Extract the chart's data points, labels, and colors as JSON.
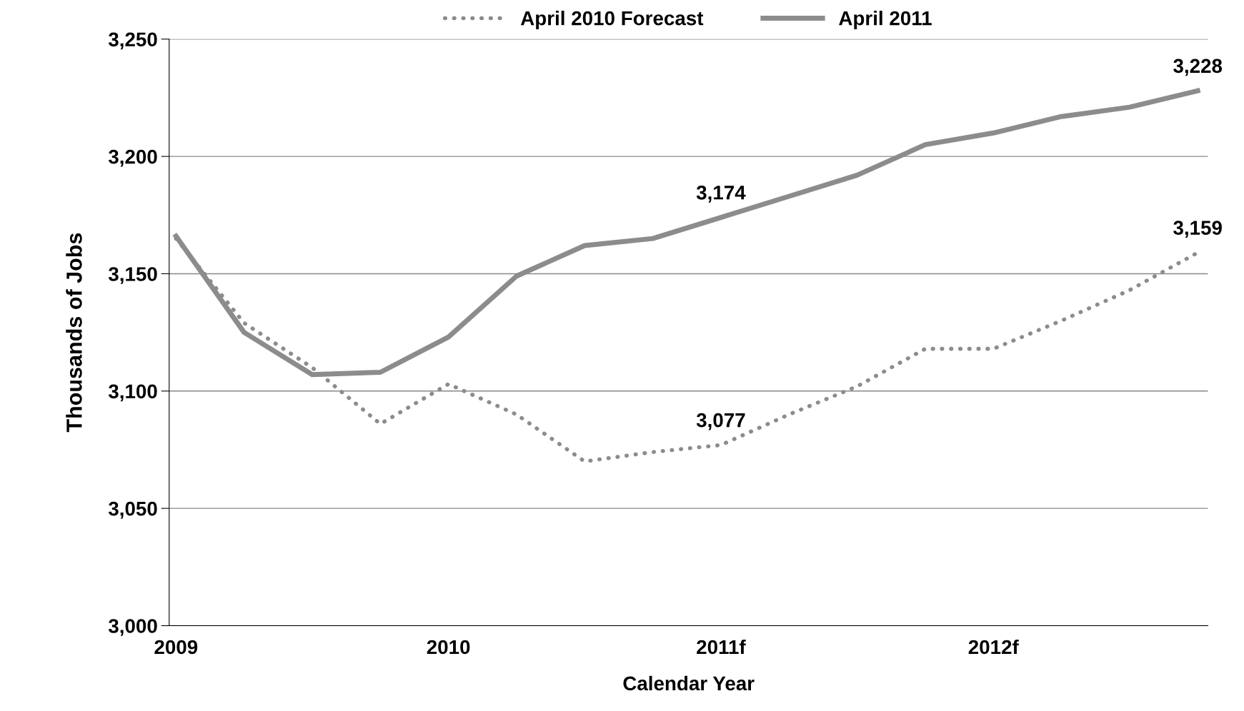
{
  "chart_data": {
    "type": "line",
    "xlabel": "Calendar Year",
    "ylabel": "Thousands of Jobs",
    "categories": [
      "2009",
      null,
      null,
      null,
      "2010",
      null,
      null,
      null,
      "2011f",
      null,
      null,
      null,
      "2012f",
      null,
      null,
      null
    ],
    "series": [
      {
        "name": "April 2010 Forecast",
        "color": "#8c8c8c",
        "line_style": "dotted",
        "values": [
          3165,
          3129,
          3110,
          3086,
          3103,
          3090,
          3070,
          3074,
          3077,
          3090,
          3102,
          3118,
          3118,
          3130,
          3143,
          3159
        ],
        "value_labels": [
          null,
          null,
          null,
          null,
          null,
          null,
          null,
          null,
          "3,077",
          null,
          null,
          null,
          null,
          null,
          null,
          "3,159"
        ]
      },
      {
        "name": "April 2011",
        "color": "#8c8c8c",
        "line_style": "solid",
        "values": [
          3166,
          3125,
          3107,
          3108,
          3123,
          3149,
          3162,
          3165,
          3174,
          3183,
          3192,
          3205,
          3210,
          3217,
          3221,
          3228
        ],
        "value_labels": [
          null,
          null,
          null,
          null,
          null,
          null,
          null,
          null,
          "3,174",
          null,
          null,
          null,
          null,
          null,
          null,
          "3,228"
        ]
      }
    ],
    "ylim": [
      3000,
      3250
    ],
    "yticks": [
      {
        "value": 3000,
        "label": "3,000"
      },
      {
        "value": 3050,
        "label": "3,050"
      },
      {
        "value": 3100,
        "label": "3,100"
      },
      {
        "value": 3150,
        "label": "3,150"
      },
      {
        "value": 3200,
        "label": "3,200"
      },
      {
        "value": 3250,
        "label": "3,250"
      }
    ],
    "grid": "y",
    "legend": "top",
    "marker": "none"
  }
}
